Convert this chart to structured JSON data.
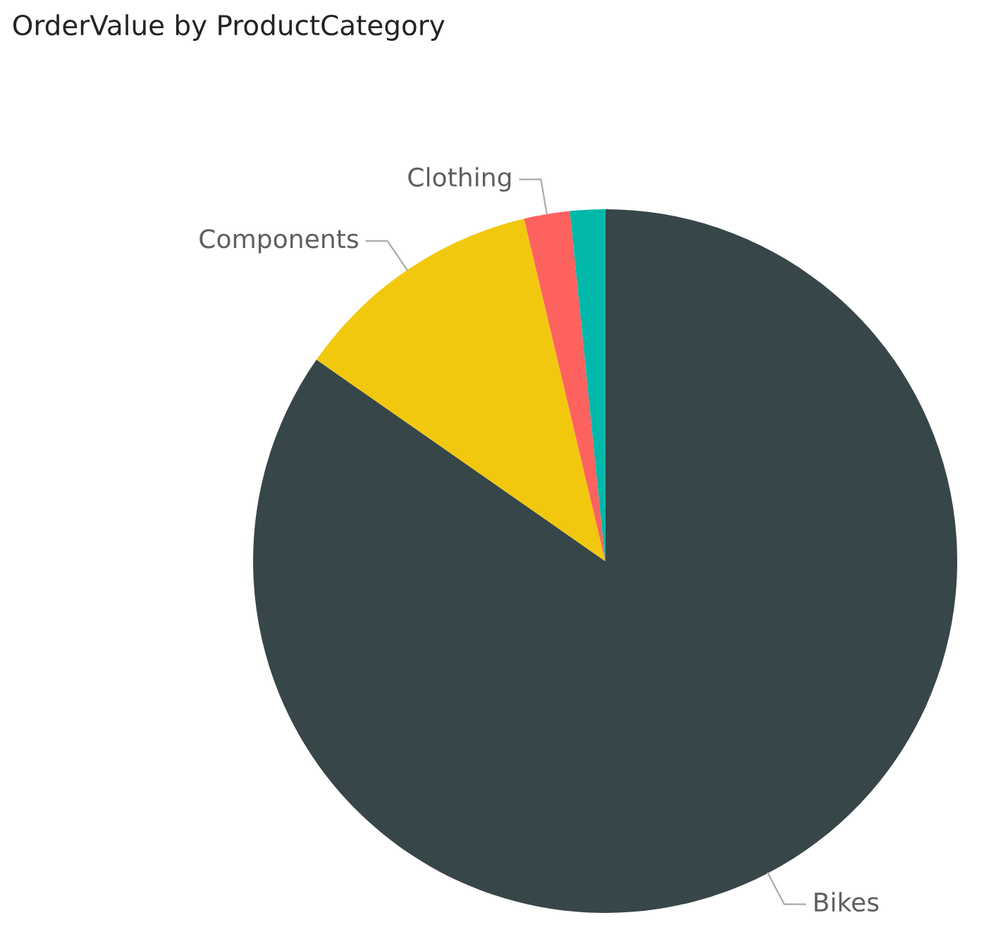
{
  "chart_data": {
    "type": "pie",
    "title": "OrderValue by ProductCategory",
    "categories": [
      "Bikes",
      "Components",
      "Clothing",
      null
    ],
    "values": [
      84.7,
      11.6,
      2.1,
      1.6
    ],
    "colors": [
      "#374649",
      "#f2c80f",
      "#fd625e",
      "#01b8aa"
    ],
    "legend": false
  }
}
